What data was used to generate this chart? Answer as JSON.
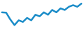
{
  "values": [
    78.0,
    77.8,
    73.5,
    70.0,
    73.0,
    72.0,
    74.5,
    73.0,
    76.5,
    75.5,
    78.0,
    76.5,
    79.5,
    78.0,
    80.5,
    79.5,
    81.5,
    82.5,
    81.5,
    83.5
  ],
  "line_color": "#1a8cc8",
  "line_width": 1.8,
  "bg_color": "#ffffff"
}
